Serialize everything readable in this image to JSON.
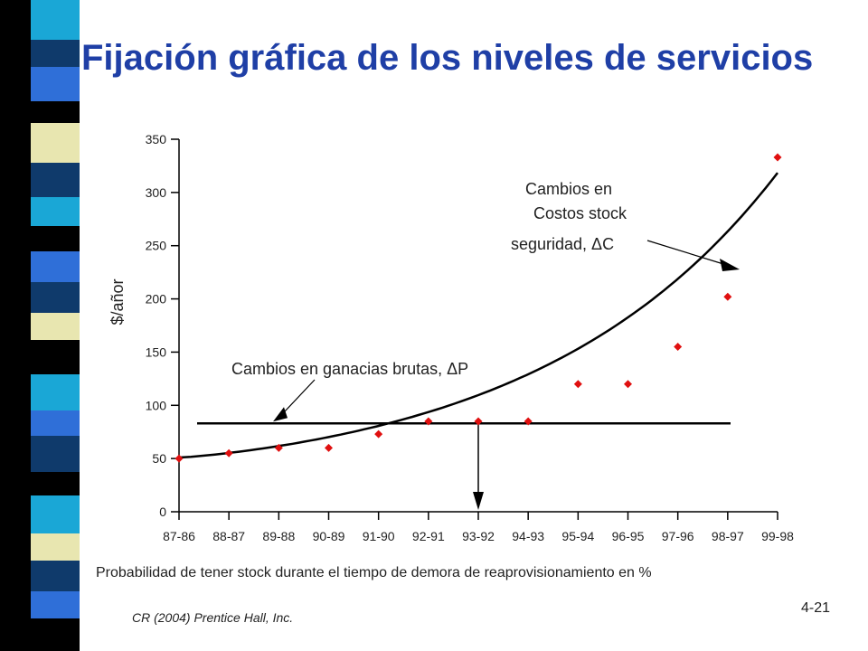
{
  "slide": {
    "title": "Fijación gráfica de los niveles de servicios",
    "credit": "CR (2004) Prentice Hall, Inc.",
    "slide_number": "4-21"
  },
  "colors": {
    "title": "#1f3fa6",
    "marker": "#e01010",
    "line": "#000000",
    "strip_light": "#e8e6b0",
    "strip_dark": "#0f3a6b",
    "strip_cyan": "#1aa7d6",
    "strip_blue": "#2f6fd8",
    "strip_black": "#000000"
  },
  "chart_data": {
    "type": "scatter",
    "ylabel": "$/añor",
    "xlabel": "Probabilidad de tener stock durante el tiempo de demora de reaprovisionamiento  en %",
    "categories": [
      "87-86",
      "88-87",
      "89-88",
      "90-89",
      "91-90",
      "92-91",
      "93-92",
      "94-93",
      "95-94",
      "96-95",
      "97-96",
      "98-97",
      "99-98"
    ],
    "ylim": [
      0,
      350
    ],
    "yticks": [
      0,
      50,
      100,
      150,
      200,
      250,
      300,
      350
    ],
    "series": [
      {
        "name": "",
        "values": [
          50,
          55,
          60,
          60,
          73,
          85,
          85,
          85,
          120,
          120,
          155,
          202,
          333
        ]
      }
    ],
    "lines": {
      "gross_margin_level": 83,
      "safety_stock_curve_start": 51,
      "safety_stock_curve_end": 320
    },
    "annotations": {
      "gross_margin": "Cambios en ganacias brutas, ΔP",
      "stock_line1": "Cambios en",
      "stock_line2": "Costos stock",
      "stock_line3": "seguridad, ΔC"
    },
    "grid": false
  }
}
